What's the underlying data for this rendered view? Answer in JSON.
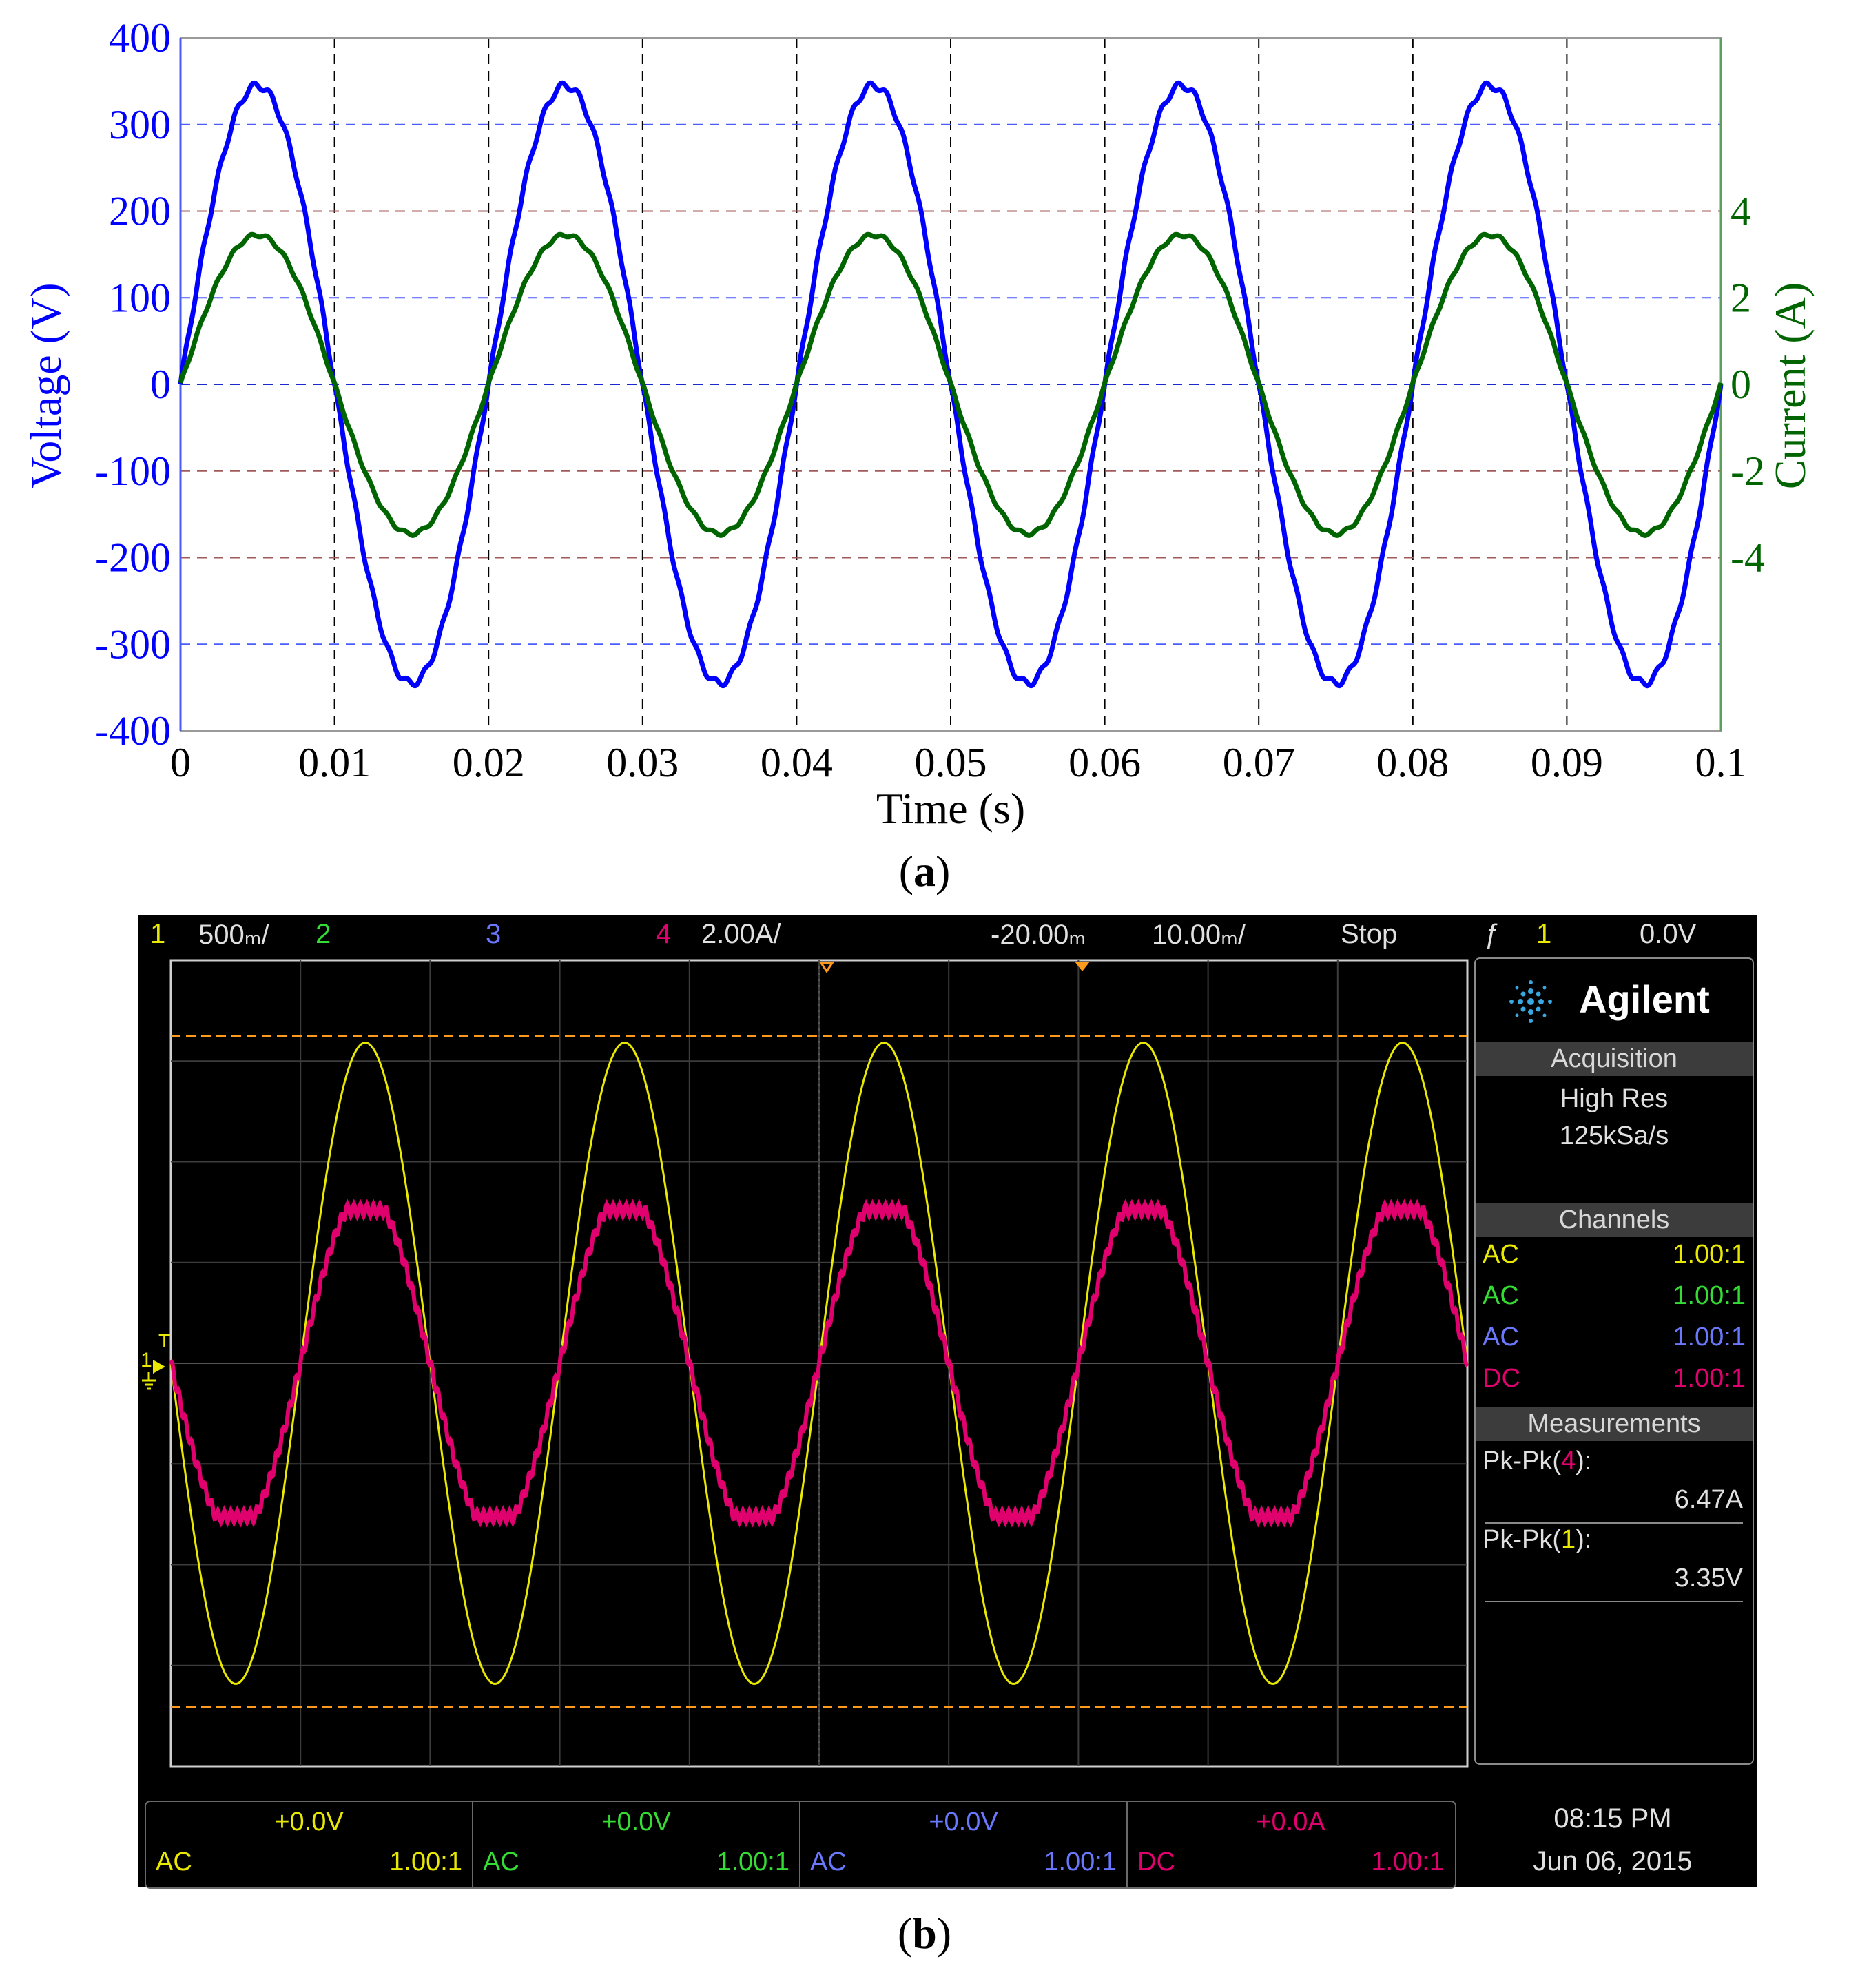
{
  "captions": {
    "a": "(a)",
    "a_letter": "a",
    "b": "(b)",
    "b_letter": "b"
  },
  "chart_data": [
    {
      "type": "line",
      "title": "",
      "xlabel": "Time (s)",
      "ylabel": "Voltage (V)",
      "y2label": "Current (A)",
      "xlim": [
        0,
        0.1
      ],
      "ylim": [
        -400,
        400
      ],
      "y2lim": [
        -8,
        8
      ],
      "x_ticks": [
        "0",
        "0.01",
        "0.02",
        "0.03",
        "0.04",
        "0.05",
        "0.06",
        "0.07",
        "0.08",
        "0.09",
        "0.1"
      ],
      "y_ticks": [
        "400",
        "300",
        "200",
        "100",
        "0",
        "-100",
        "-200",
        "-300",
        "-400"
      ],
      "y2_ticks": [
        "4",
        "2",
        "0",
        "-2",
        "-4"
      ],
      "grid": true,
      "series": [
        {
          "name": "Voltage",
          "axis": "left",
          "color": "#0000ff",
          "frequency_hz": 50,
          "amplitude": 345,
          "unit": "V"
        },
        {
          "name": "Current",
          "axis": "right",
          "color": "#006400",
          "frequency_hz": 50,
          "amplitude": 3.45,
          "unit": "A"
        }
      ]
    },
    {
      "type": "line",
      "title": "",
      "grid": true,
      "series": [
        {
          "name": "1",
          "color": "#e8e800",
          "cycles_on_screen": 5,
          "amplitude_divisions": 3.35
        },
        {
          "name": "4",
          "color": "#e0006e",
          "cycles_on_screen": 5,
          "amplitude_divisions": 1.6
        }
      ]
    }
  ],
  "scope": {
    "top_bar": {
      "ch1_num": "1",
      "ch1_scale": "500ₘ/",
      "ch2_num": "2",
      "ch3_num": "3",
      "ch4_num": "4",
      "ch4_scale": "2.00A/",
      "time_offset": "-20.00ₘ",
      "time_scale": "10.00ₘ/",
      "run_state": "Stop",
      "trigger_icon": "ƒ",
      "trigger_channel": "1",
      "trigger_level": "0.0V"
    },
    "brand": "Agilent",
    "acquisition": {
      "header": "Acquisition",
      "mode": "High Res",
      "rate": "125kSa/s"
    },
    "channels": {
      "header": "Channels",
      "rows": [
        {
          "coupling": "AC",
          "ratio": "1.00:1",
          "color": "#e8e800"
        },
        {
          "coupling": "AC",
          "ratio": "1.00:1",
          "color": "#33dd33"
        },
        {
          "coupling": "AC",
          "ratio": "1.00:1",
          "color": "#6a78ff"
        },
        {
          "coupling": "DC",
          "ratio": "1.00:1",
          "color": "#e0006e"
        }
      ]
    },
    "measurements": {
      "header": "Measurements",
      "m1_label_pre": "Pk-Pk(",
      "m1_ch": "4",
      "m1_label_post": "):",
      "m1_value": "6.47A",
      "m2_label_pre": "Pk-Pk(",
      "m2_ch": "1",
      "m2_label_post": "):",
      "m2_value": "3.35V"
    },
    "bottom": [
      {
        "offset": "+0.0V",
        "coupling": "AC",
        "ratio": "1.00:1",
        "color": "#e8e800"
      },
      {
        "offset": "+0.0V",
        "coupling": "AC",
        "ratio": "1.00:1",
        "color": "#33dd33"
      },
      {
        "offset": "+0.0V",
        "coupling": "AC",
        "ratio": "1.00:1",
        "color": "#6a78ff"
      },
      {
        "offset": "+0.0A",
        "coupling": "DC",
        "ratio": "1.00:1",
        "color": "#e0006e"
      }
    ],
    "time": "08:15 PM",
    "date": "Jun 06, 2015",
    "ground_marker": "1",
    "trigger_marker": "T"
  }
}
